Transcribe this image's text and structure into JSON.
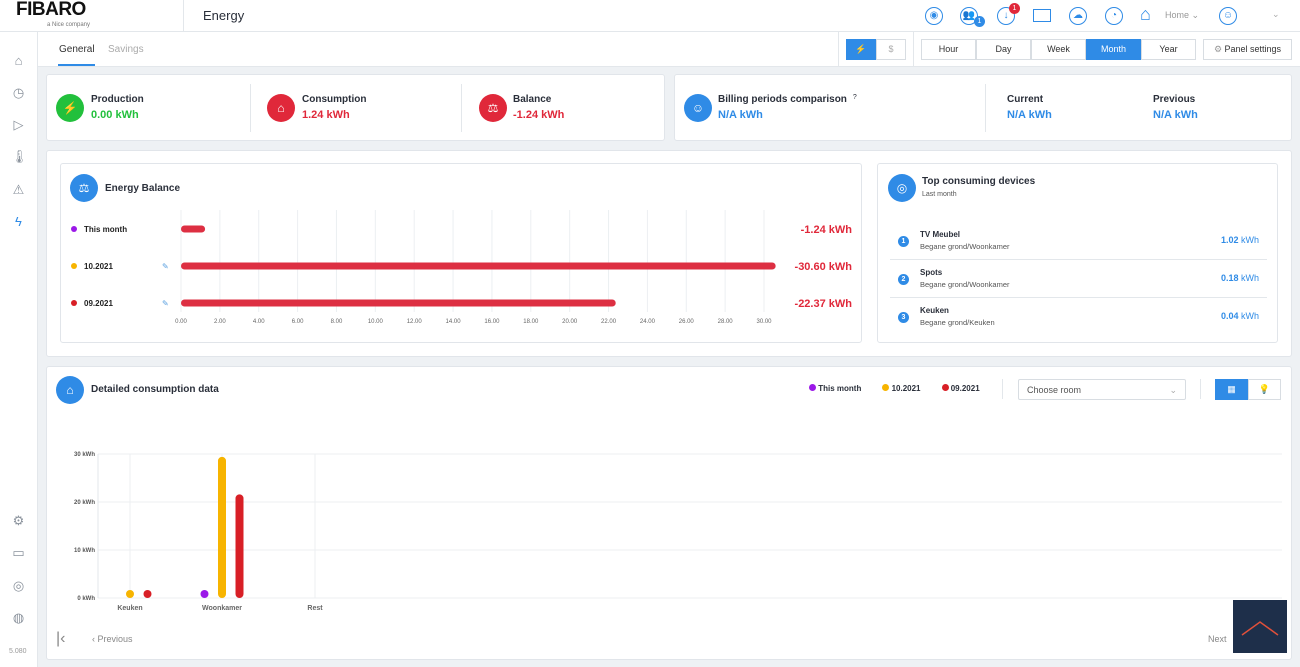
{
  "header": {
    "logo": "FIBARO",
    "logo_sub": "a Nice company",
    "title": "Energy",
    "notifications_badge": "1",
    "updates_badge": "1",
    "location": "Home",
    "icons": [
      "alarm-icon",
      "users-icon",
      "download-icon",
      "mail-icon",
      "weather-icon",
      "clock-icon",
      "home-icon",
      "user-profile-icon"
    ]
  },
  "sidebar": {
    "items": [
      "home-icon",
      "scenes-icon",
      "media-icon",
      "climate-icon",
      "alarm-icon",
      "energy-icon"
    ],
    "bottom": [
      "settings-icon",
      "terminal-icon",
      "network-icon",
      "help-icon"
    ],
    "version": "5.080"
  },
  "tabs": {
    "general": "General",
    "savings": "Savings"
  },
  "unit_toggle": {
    "energy": "⚡",
    "money": "$"
  },
  "periods": [
    "Hour",
    "Day",
    "Week",
    "Month",
    "Year"
  ],
  "active_period": "Month",
  "panel_settings": "Panel settings",
  "summary": {
    "production": {
      "label": "Production",
      "value": "0.00 kWh"
    },
    "consumption": {
      "label": "Consumption",
      "value": "1.24 kWh"
    },
    "balance": {
      "label": "Balance",
      "value": "-1.24 kWh"
    }
  },
  "billing": {
    "label": "Billing periods comparison",
    "help": "?",
    "value": "N/A kWh",
    "current_label": "Current",
    "current_value": "N/A kWh",
    "previous_label": "Previous",
    "previous_value": "N/A kWh"
  },
  "colors": {
    "accent": "#2f8be6",
    "green": "#22c03c",
    "red": "#e0283a",
    "this_month": "#9b19e8",
    "oct": "#f7b400",
    "sep": "#d81f26"
  },
  "chart_data": [
    {
      "type": "bar",
      "orientation": "horizontal",
      "title": "Energy Balance",
      "categories": [
        "This month",
        "10.2021",
        "09.2021"
      ],
      "values": [
        -1.24,
        -30.6,
        -22.37
      ],
      "value_labels": [
        "-1.24 kWh",
        "-30.60 kWh",
        "-22.37 kWh"
      ],
      "xlim": [
        0,
        30
      ],
      "xticks": [
        "0.00",
        "2.00",
        "4.00",
        "6.00",
        "8.00",
        "10.00",
        "12.00",
        "14.00",
        "16.00",
        "18.00",
        "20.00",
        "22.00",
        "24.00",
        "26.00",
        "28.00",
        "30.00"
      ],
      "grid": true
    },
    {
      "type": "bar",
      "title": "Detailed consumption data",
      "categories": [
        "Keuken",
        "Woonkamer",
        "Rest"
      ],
      "series": [
        {
          "name": "This month",
          "values": [
            0,
            0.9,
            0
          ]
        },
        {
          "name": "10.2021",
          "values": [
            0.6,
            29.4,
            0
          ]
        },
        {
          "name": "09.2021",
          "values": [
            0.4,
            21.6,
            0
          ]
        }
      ],
      "ylim": [
        0,
        30
      ],
      "yticks": [
        "0 kWh",
        "10 kWh",
        "20 kWh",
        "30 kWh"
      ],
      "legend": "top-right",
      "grid": true
    }
  ],
  "top_devices": {
    "title": "Top consuming devices",
    "subtitle": "Last month",
    "items": [
      {
        "rank": "1",
        "name": "TV Meubel",
        "room": "Begane grond/Woonkamer",
        "value": "1.02",
        "unit": "kWh"
      },
      {
        "rank": "2",
        "name": "Spots",
        "room": "Begane grond/Woonkamer",
        "value": "0.18",
        "unit": "kWh"
      },
      {
        "rank": "3",
        "name": "Keuken",
        "room": "Begane grond/Keuken",
        "value": "0.04",
        "unit": "kWh"
      }
    ]
  },
  "detail": {
    "room_placeholder": "Choose room",
    "previous": "Previous",
    "next": "Next"
  }
}
